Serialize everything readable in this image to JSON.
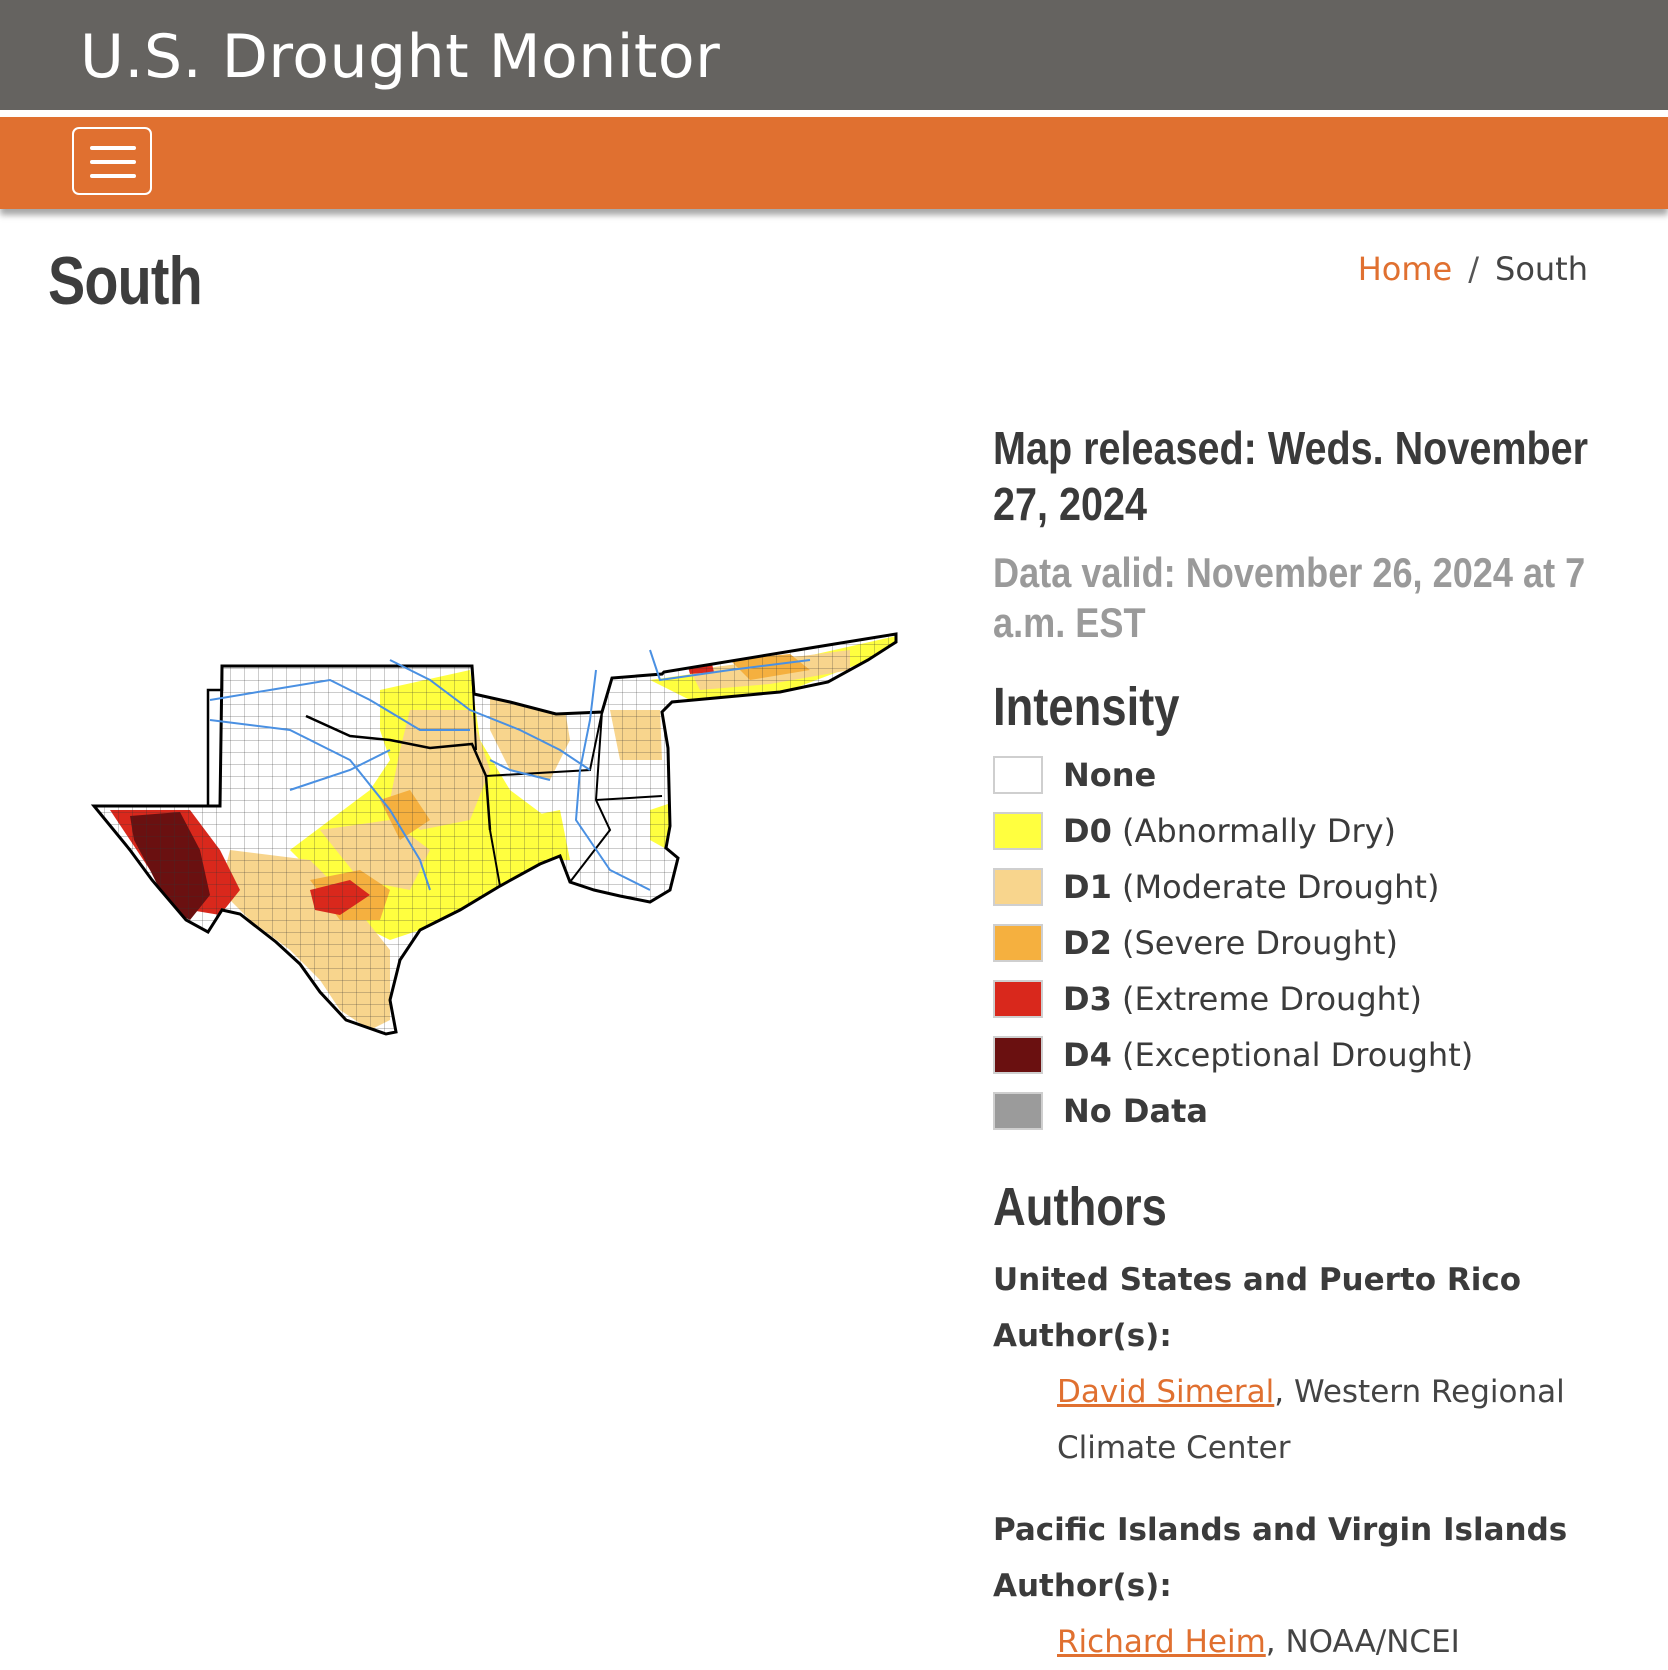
{
  "header": {
    "site_title": "U.S. Drought Monitor"
  },
  "nav": {
    "menu_icon": "hamburger-icon"
  },
  "page": {
    "title": "South"
  },
  "breadcrumb": {
    "home": "Home",
    "separator": "/",
    "current": "South"
  },
  "map": {
    "released": "Map released: Weds. November 27, 2024",
    "valid": "Data valid: November 26, 2024 at 7 a.m. EST"
  },
  "legend": {
    "heading": "Intensity",
    "items": [
      {
        "code": "None",
        "desc": "",
        "color": "#ffffff"
      },
      {
        "code": "D0",
        "desc": "(Abnormally Dry)",
        "color": "#ffff3f"
      },
      {
        "code": "D1",
        "desc": "(Moderate Drought)",
        "color": "#f8d58d"
      },
      {
        "code": "D2",
        "desc": "(Severe Drought)",
        "color": "#f5b03f"
      },
      {
        "code": "D3",
        "desc": "(Extreme Drought)",
        "color": "#d9281c"
      },
      {
        "code": "D4",
        "desc": "(Exceptional Drought)",
        "color": "#6a1010"
      },
      {
        "code": "No Data",
        "desc": "",
        "color": "#9b9b9b"
      }
    ]
  },
  "authors": {
    "heading": "Authors",
    "groups": [
      {
        "title": "United States and Puerto Rico Author(s):",
        "name": "David Simeral",
        "affiliation": ", Western Regional Climate Center"
      },
      {
        "title": "Pacific Islands and Virgin Islands Author(s):",
        "name": "Richard Heim",
        "affiliation": ", NOAA/NCEI"
      }
    ]
  },
  "colors": {
    "accent": "#e07030",
    "header_bg": "#656360",
    "river": "#4a90e2"
  }
}
